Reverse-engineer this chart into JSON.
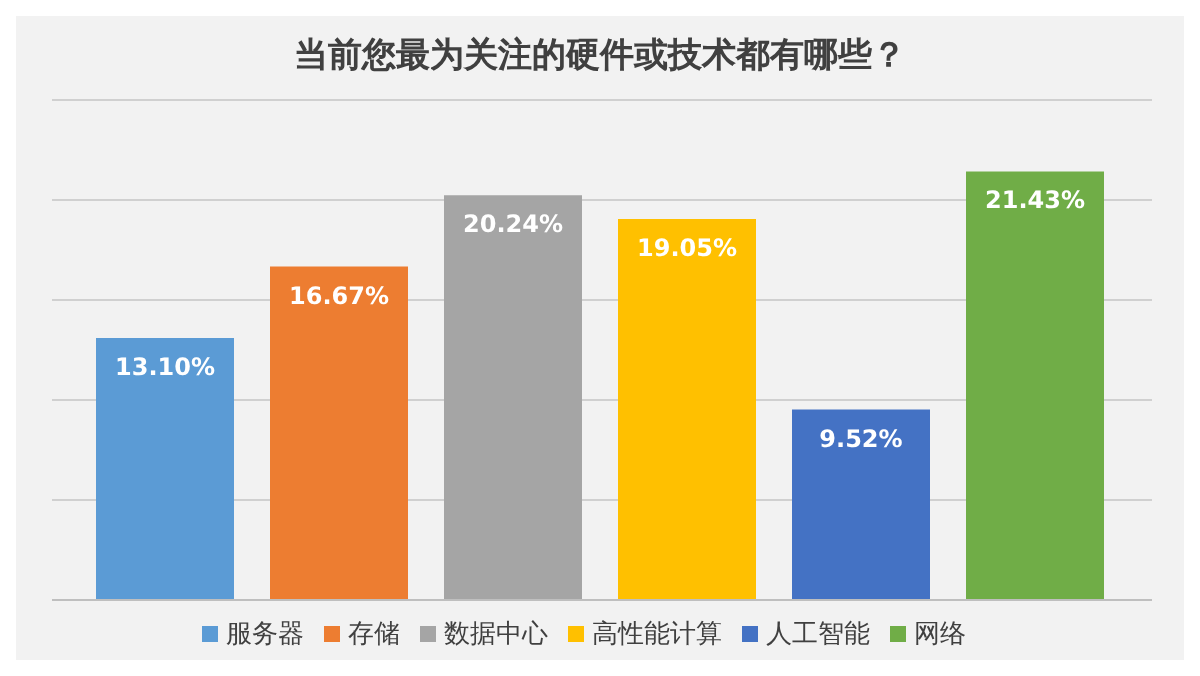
{
  "chart_data": {
    "type": "bar",
    "title": "当前您最为关注的硬件或技术都有哪些？",
    "categories": [
      null
    ],
    "series": [
      {
        "name": "服务器",
        "color": "#5b9bd5",
        "values": [
          13.1
        ],
        "value_labels": [
          "13.10%"
        ]
      },
      {
        "name": "存储",
        "color": "#ed7d31",
        "values": [
          16.67
        ],
        "value_labels": [
          "16.67%"
        ]
      },
      {
        "name": "数据中心",
        "color": "#a5a5a5",
        "values": [
          20.24
        ],
        "value_labels": [
          "20.24%"
        ]
      },
      {
        "name": "高性能计算",
        "color": "#ffc000",
        "values": [
          19.05
        ],
        "value_labels": [
          "19.05%"
        ]
      },
      {
        "name": "人工智能",
        "color": "#4472c4",
        "values": [
          9.52
        ],
        "value_labels": [
          "9.52%"
        ]
      },
      {
        "name": "网络",
        "color": "#70ad47",
        "values": [
          21.43
        ],
        "value_labels": [
          "21.43%"
        ]
      }
    ],
    "ylim": [
      0,
      25
    ],
    "yticks": [
      {
        "value": 0,
        "label": null
      },
      {
        "value": 5,
        "label": null
      },
      {
        "value": 10,
        "label": null
      },
      {
        "value": 15,
        "label": null
      },
      {
        "value": 20,
        "label": null
      },
      {
        "value": 25,
        "label": null
      }
    ],
    "grid": "y",
    "legend": "bottom",
    "tick_labels": false
  }
}
